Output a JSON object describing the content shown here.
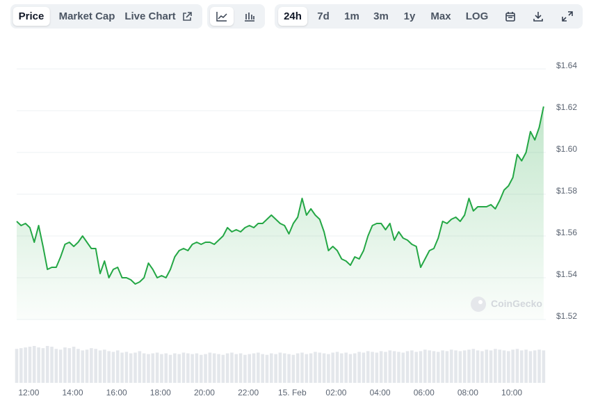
{
  "toolbar": {
    "tabs": [
      "Price",
      "Market Cap",
      "Live Chart"
    ],
    "ranges": [
      "24h",
      "7d",
      "1m",
      "3m",
      "1y",
      "Max",
      "LOG"
    ]
  },
  "chart_data": {
    "type": "line",
    "color": "#24a745",
    "watermark": "CoinGecko",
    "x": [
      11.45,
      11.65,
      11.85,
      12.05,
      12.25,
      12.45,
      12.65,
      12.85,
      13.05,
      13.25,
      13.45,
      13.65,
      13.85,
      14.05,
      14.25,
      14.45,
      14.65,
      14.85,
      15.05,
      15.25,
      15.45,
      15.65,
      15.85,
      16.05,
      16.25,
      16.45,
      16.65,
      16.85,
      17.05,
      17.25,
      17.45,
      17.65,
      17.85,
      18.05,
      18.25,
      18.45,
      18.65,
      18.85,
      19.05,
      19.25,
      19.45,
      19.65,
      19.85,
      20.05,
      20.25,
      20.45,
      20.65,
      20.85,
      21.05,
      21.25,
      21.45,
      21.65,
      21.85,
      22.05,
      22.25,
      22.45,
      22.65,
      22.85,
      23.05,
      23.25,
      23.45,
      23.65,
      23.85,
      24.05,
      24.25,
      24.45,
      24.65,
      24.85,
      25.05,
      25.25,
      25.45,
      25.65,
      25.85,
      26.05,
      26.25,
      26.45,
      26.65,
      26.85,
      27.05,
      27.25,
      27.45,
      27.65,
      27.85,
      28.05,
      28.25,
      28.45,
      28.65,
      28.85,
      29.05,
      29.25,
      29.45,
      29.65,
      29.85,
      30.05,
      30.25,
      30.45,
      30.65,
      30.85,
      31.05,
      31.25,
      31.45,
      31.65,
      31.85,
      32.05,
      32.25,
      32.45,
      32.65,
      32.85,
      33.05,
      33.25,
      33.45,
      33.65,
      33.85,
      34.05,
      34.25,
      34.45,
      34.65,
      34.85,
      35.05,
      35.25,
      35.45
    ],
    "values": [
      1.567,
      1.565,
      1.566,
      1.564,
      1.557,
      1.565,
      1.555,
      1.544,
      1.545,
      1.545,
      1.55,
      1.556,
      1.557,
      1.555,
      1.557,
      1.56,
      1.557,
      1.554,
      1.554,
      1.542,
      1.548,
      1.54,
      1.544,
      1.545,
      1.54,
      1.54,
      1.539,
      1.537,
      1.538,
      1.54,
      1.547,
      1.544,
      1.54,
      1.541,
      1.54,
      1.544,
      1.55,
      1.553,
      1.554,
      1.553,
      1.556,
      1.557,
      1.556,
      1.557,
      1.557,
      1.556,
      1.558,
      1.56,
      1.564,
      1.562,
      1.563,
      1.562,
      1.564,
      1.565,
      1.564,
      1.566,
      1.566,
      1.568,
      1.57,
      1.568,
      1.566,
      1.565,
      1.561,
      1.566,
      1.569,
      1.578,
      1.57,
      1.573,
      1.57,
      1.568,
      1.562,
      1.553,
      1.555,
      1.553,
      1.549,
      1.548,
      1.546,
      1.55,
      1.549,
      1.553,
      1.56,
      1.565,
      1.566,
      1.566,
      1.563,
      1.566,
      1.558,
      1.562,
      1.559,
      1.558,
      1.556,
      1.555,
      1.545,
      1.549,
      1.553,
      1.554,
      1.559,
      1.567,
      1.566,
      1.568,
      1.569,
      1.567,
      1.57,
      1.578,
      1.572,
      1.574,
      1.574,
      1.574,
      1.575,
      1.573,
      1.577,
      1.582,
      1.584,
      1.588,
      1.599,
      1.596,
      1.6,
      1.61,
      1.606,
      1.612,
      1.622
    ],
    "volume": {
      "ylim": [
        0,
        50
      ],
      "values": [
        46,
        47,
        48,
        49,
        50,
        48,
        47,
        50,
        49,
        46,
        45,
        48,
        47,
        49,
        46,
        44,
        45,
        47,
        46,
        44,
        45,
        43,
        42,
        44,
        41,
        42,
        40,
        41,
        43,
        40,
        39,
        40,
        41,
        39,
        40,
        38,
        40,
        39,
        41,
        40,
        39,
        40,
        38,
        39,
        41,
        40,
        39,
        38,
        40,
        41,
        39,
        40,
        38,
        39,
        40,
        41,
        39,
        38,
        40,
        39,
        41,
        40,
        39,
        38,
        40,
        41,
        39,
        40,
        42,
        41,
        40,
        39,
        41,
        42,
        40,
        41,
        39,
        40,
        42,
        41,
        43,
        42,
        41,
        43,
        42,
        44,
        43,
        42,
        41,
        43,
        44,
        42,
        43,
        45,
        44,
        43,
        42,
        44,
        43,
        45,
        44,
        43,
        44,
        45,
        46,
        44,
        43,
        45,
        44,
        46,
        45,
        44,
        43,
        45,
        46,
        44,
        45,
        43,
        44,
        45,
        44
      ]
    },
    "xlim": [
      11.45,
      35.55
    ],
    "xticks": [
      {
        "value": 12,
        "label": "12:00"
      },
      {
        "value": 14,
        "label": "14:00"
      },
      {
        "value": 16,
        "label": "16:00"
      },
      {
        "value": 18,
        "label": "18:00"
      },
      {
        "value": 20,
        "label": "20:00"
      },
      {
        "value": 22,
        "label": "22:00"
      },
      {
        "value": 24,
        "label": "15. Feb"
      },
      {
        "value": 26,
        "label": "02:00"
      },
      {
        "value": 28,
        "label": "04:00"
      },
      {
        "value": 30,
        "label": "06:00"
      },
      {
        "value": 32,
        "label": "08:00"
      },
      {
        "value": 34,
        "label": "10:00"
      }
    ],
    "ylim": [
      1.52,
      1.64
    ],
    "yticks": [
      {
        "value": 1.52,
        "label": "$1.52"
      },
      {
        "value": 1.54,
        "label": "$1.54"
      },
      {
        "value": 1.56,
        "label": "$1.56"
      },
      {
        "value": 1.58,
        "label": "$1.58"
      },
      {
        "value": 1.6,
        "label": "$1.60"
      },
      {
        "value": 1.62,
        "label": "$1.62"
      },
      {
        "value": 1.64,
        "label": "$1.64"
      }
    ],
    "grid": true
  }
}
